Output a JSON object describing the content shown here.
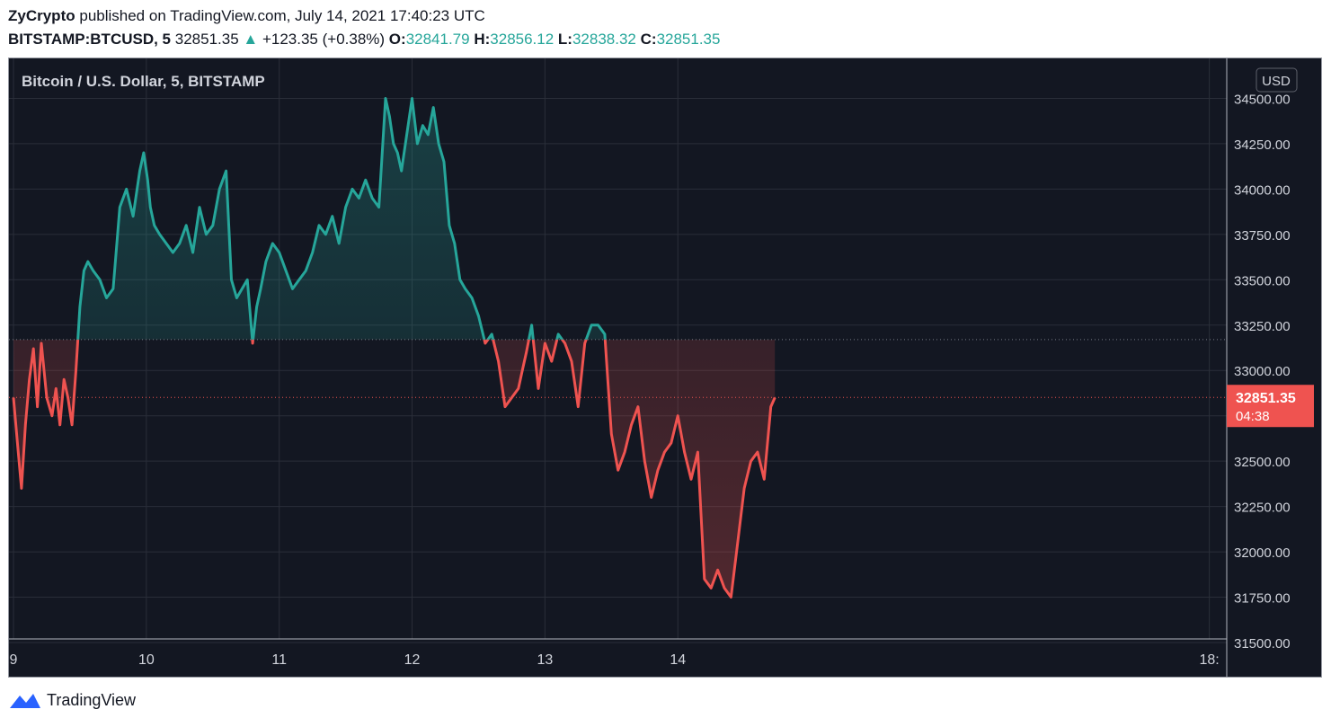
{
  "header": {
    "publisher": "ZyCrypto",
    "published_text": "published on TradingView.com, July 14, 2021 17:40:23 UTC",
    "symbol": "BITSTAMP:BTCUSD, 5",
    "price": "32851.35",
    "change_arrow": "▲",
    "change": "+123.35 (+0.38%)",
    "o_label": "O:",
    "o_value": "32841.79",
    "h_label": "H:",
    "h_value": "32856.12",
    "l_label": "L:",
    "l_value": "32838.32",
    "c_label": "C:",
    "c_value": "32851.35"
  },
  "footer": {
    "brand": "TradingView",
    "logo_icon": "tradingview-logo-icon"
  },
  "colors": {
    "background": "#131722",
    "grid": "#2a2e39",
    "up": "#26a69a",
    "down": "#ef5350",
    "axis_text": "#d1d4dc"
  },
  "chart_data": {
    "type": "area",
    "title": "Bitcoin / U.S. Dollar, 5, BITSTAMP",
    "currency_label": "USD",
    "ylim": [
      31500,
      34750
    ],
    "yticks": [
      31500,
      31750,
      32000,
      32250,
      32500,
      32750,
      33000,
      33250,
      33500,
      33750,
      34000,
      34250,
      34500
    ],
    "ytick_labels": [
      "31500.00",
      "31750.00",
      "32000.00",
      "32250.00",
      "32500.00",
      "32750.00",
      "33000.00",
      "33250.00",
      "33500.00",
      "33750.00",
      "34000.00",
      "34250.00",
      "34500.00"
    ],
    "xlim": [
      9.0,
      18.05
    ],
    "xticks": [
      9,
      10,
      11,
      12,
      13,
      14,
      18
    ],
    "xtick_labels": [
      "9",
      "10",
      "11",
      "12",
      "13",
      "14",
      "18:"
    ],
    "baseline": 33170,
    "current_price": 32851.35,
    "current_price_label": "32851.35",
    "countdown_label": "04:38",
    "series": [
      {
        "x": [
          9.0,
          9.03,
          9.06,
          9.09,
          9.12,
          9.15,
          9.18,
          9.21,
          9.25,
          9.29,
          9.32,
          9.35,
          9.38,
          9.41,
          9.44,
          9.47,
          9.5,
          9.53,
          9.56,
          9.6,
          9.65,
          9.7,
          9.75,
          9.8,
          9.85,
          9.9,
          9.95,
          9.98,
          10.01,
          10.03,
          10.06,
          10.1,
          10.15,
          10.2,
          10.25,
          10.3,
          10.35,
          10.4,
          10.45,
          10.5,
          10.55,
          10.6,
          10.64,
          10.68,
          10.72,
          10.76,
          10.8,
          10.83,
          10.86,
          10.9,
          10.95,
          11.0,
          11.05,
          11.1,
          11.15,
          11.2,
          11.25,
          11.3,
          11.35,
          11.4,
          11.45,
          11.5,
          11.55,
          11.6,
          11.65,
          11.7,
          11.75,
          11.8,
          11.83,
          11.86,
          11.89,
          11.92,
          11.96,
          12.0,
          12.04,
          12.08,
          12.12,
          12.16,
          12.2,
          12.24,
          12.28,
          12.32,
          12.36,
          12.4,
          12.45,
          12.5,
          12.55,
          12.6,
          12.65,
          12.7,
          12.75,
          12.8,
          12.83,
          12.86,
          12.9,
          12.95,
          13.0,
          13.05,
          13.1,
          13.15,
          13.2,
          13.25,
          13.3,
          13.35,
          13.4,
          13.45,
          13.5,
          13.55,
          13.6,
          13.65,
          13.7,
          13.75,
          13.8,
          13.85,
          13.9,
          13.95,
          14.0,
          14.05,
          14.1,
          14.15,
          14.2,
          14.25,
          14.3,
          14.35,
          14.4,
          14.45,
          14.5,
          14.55,
          14.6,
          14.65,
          14.7,
          14.73
        ],
        "y": [
          32850,
          32600,
          32350,
          32700,
          32950,
          33120,
          32800,
          33150,
          32850,
          32750,
          32900,
          32700,
          32950,
          32850,
          32700,
          33000,
          33350,
          33550,
          33600,
          33550,
          33500,
          33400,
          33450,
          33900,
          34000,
          33850,
          34100,
          34200,
          34050,
          33900,
          33800,
          33750,
          33700,
          33650,
          33700,
          33800,
          33650,
          33900,
          33750,
          33800,
          34000,
          34100,
          33500,
          33400,
          33450,
          33500,
          33150,
          33350,
          33450,
          33600,
          33700,
          33650,
          33550,
          33450,
          33500,
          33550,
          33650,
          33800,
          33750,
          33850,
          33700,
          33900,
          34000,
          33950,
          34050,
          33950,
          33900,
          34500,
          34400,
          34250,
          34200,
          34100,
          34300,
          34500,
          34250,
          34350,
          34300,
          34450,
          34250,
          34150,
          33800,
          33700,
          33500,
          33450,
          33400,
          33300,
          33150,
          33200,
          33050,
          32800,
          32850,
          32900,
          33000,
          33100,
          33250,
          32900,
          33150,
          33050,
          33200,
          33150,
          33050,
          32800,
          33150,
          33250,
          33250,
          33200,
          32650,
          32450,
          32550,
          32700,
          32800,
          32500,
          32300,
          32450,
          32550,
          32600,
          32750,
          32550,
          32400,
          32550,
          31850,
          31800,
          31900,
          31800,
          31750,
          32050,
          32350,
          32500,
          32550,
          32400,
          32800,
          32850
        ]
      }
    ]
  }
}
